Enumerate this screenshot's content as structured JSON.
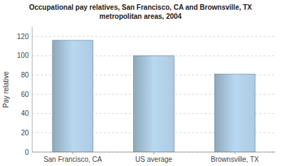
{
  "chart_data": {
    "type": "bar",
    "title": "Occupational pay relatives, San Francisco, CA and Brownsville, TX\nmetropolitan areas, 2004",
    "categories": [
      "San Francisco, CA",
      "US average",
      "Brownsville, TX"
    ],
    "values": [
      116,
      100,
      81
    ],
    "color": "#b8d8f0",
    "ylabel": "Pay relative",
    "ylim": [
      0,
      130
    ],
    "yticks": [
      0,
      20,
      40,
      60,
      80,
      100,
      120
    ],
    "grid": true
  }
}
